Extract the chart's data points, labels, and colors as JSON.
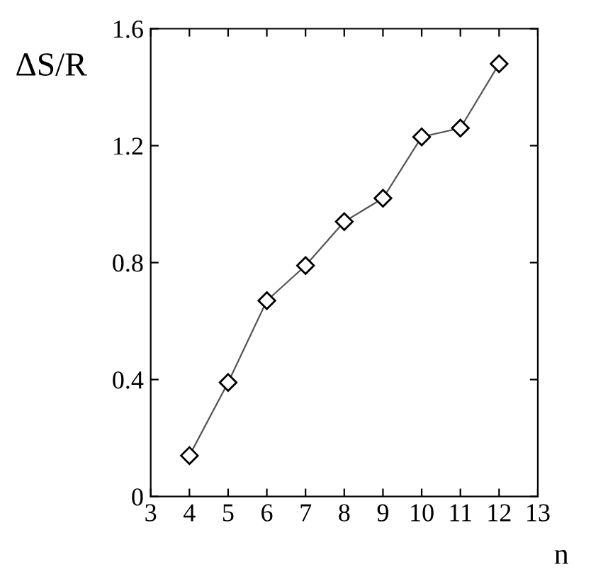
{
  "chart_data": {
    "type": "line",
    "xlabel": "n",
    "ylabel": "ΔS/R",
    "x": [
      4,
      5,
      6,
      7,
      8,
      9,
      10,
      11,
      12
    ],
    "series": [
      {
        "color": "#555555",
        "values": [
          0.14,
          0.39,
          0.67,
          0.79,
          0.94,
          1.02,
          1.23,
          1.26,
          1.48
        ]
      }
    ],
    "xlim": [
      3,
      13
    ],
    "ylim": [
      0,
      1.6
    ],
    "xticks": [
      3,
      4,
      5,
      6,
      7,
      8,
      9,
      10,
      11,
      12,
      13
    ],
    "yticks": [
      0,
      0.4,
      0.8,
      1.2,
      1.6
    ],
    "marker": "diamond",
    "line_style": "solid",
    "grid": false,
    "legend": false
  }
}
